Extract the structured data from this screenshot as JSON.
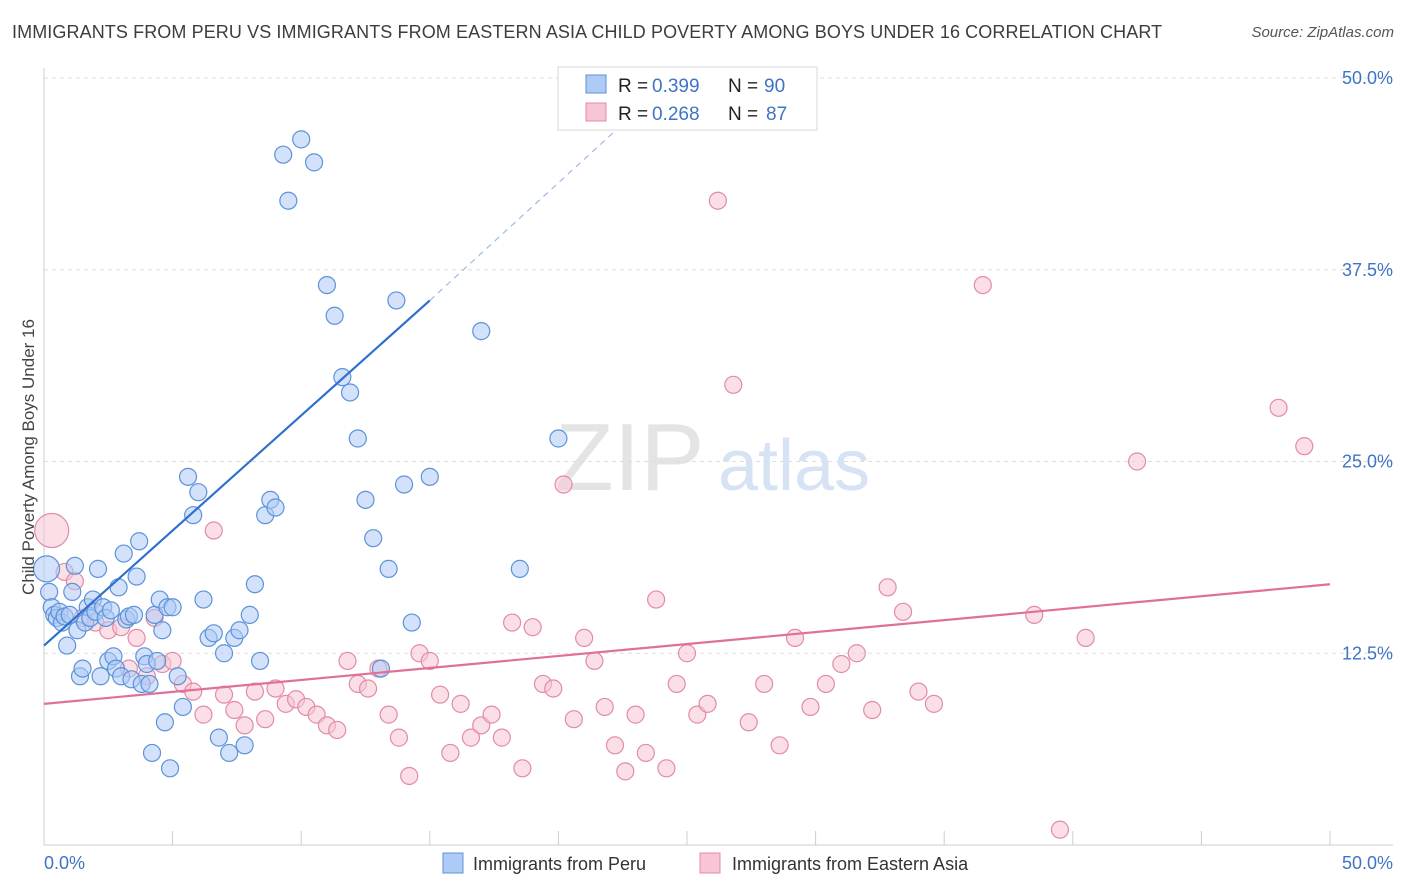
{
  "title": "IMMIGRANTS FROM PERU VS IMMIGRANTS FROM EASTERN ASIA CHILD POVERTY AMONG BOYS UNDER 16 CORRELATION CHART",
  "source": "Source: ZipAtlas.com",
  "watermark": {
    "zip": "ZIP",
    "atlas": "atlas"
  },
  "colors": {
    "peru_fill": "#aecbf5",
    "peru_stroke": "#5b93d9",
    "peru_line": "#2f6fcf",
    "asia_fill": "#f7c5d4",
    "asia_stroke": "#e28ba8",
    "asia_line": "#e0709a",
    "axis_label": "#3f74c4",
    "grid": "#dddddd"
  },
  "legend": {
    "rows": [
      {
        "r_label": "R = ",
        "r_value": "0.399",
        "n_label": "N = ",
        "n_value": "90"
      },
      {
        "r_label": "R = ",
        "r_value": "0.268",
        "n_label": "N = ",
        "n_value": "87"
      }
    ]
  },
  "chart_data": {
    "type": "scatter",
    "title": "IMMIGRANTS FROM PERU VS IMMIGRANTS FROM EASTERN ASIA CHILD POVERTY AMONG BOYS UNDER 16 CORRELATION CHART",
    "xlabel": "",
    "ylabel": "Child Poverty Among Boys Under 16",
    "xlim": [
      0,
      50
    ],
    "ylim": [
      0,
      50
    ],
    "x_tick_labels": [
      "0.0%",
      "50.0%"
    ],
    "y_ticks": [
      12.5,
      25.0,
      37.5,
      50.0
    ],
    "y_tick_labels": [
      "12.5%",
      "25.0%",
      "37.5%",
      "50.0%"
    ],
    "grid": true,
    "legend_position": "top-center",
    "series": [
      {
        "name": "Immigrants from Peru",
        "r": 0.399,
        "n": 90,
        "trend": {
          "x0": 0.0,
          "y0": 13.0,
          "x1": 15.0,
          "y1": 35.5,
          "dash_x1": 22.5,
          "dash_y1": 47.0
        },
        "points": [
          [
            0.1,
            18.0
          ],
          [
            0.2,
            16.5
          ],
          [
            0.3,
            15.5
          ],
          [
            0.4,
            15.0
          ],
          [
            0.5,
            14.8
          ],
          [
            0.6,
            15.2
          ],
          [
            0.7,
            14.5
          ],
          [
            0.8,
            14.9
          ],
          [
            0.9,
            13.0
          ],
          [
            1.0,
            15.0
          ],
          [
            1.1,
            16.5
          ],
          [
            1.2,
            18.2
          ],
          [
            1.3,
            14.0
          ],
          [
            1.4,
            11.0
          ],
          [
            1.5,
            11.5
          ],
          [
            1.6,
            14.5
          ],
          [
            1.7,
            15.5
          ],
          [
            1.8,
            14.8
          ],
          [
            1.9,
            16.0
          ],
          [
            2.0,
            15.2
          ],
          [
            2.1,
            18.0
          ],
          [
            2.2,
            11.0
          ],
          [
            2.3,
            15.5
          ],
          [
            2.4,
            14.8
          ],
          [
            2.5,
            12.0
          ],
          [
            2.6,
            15.3
          ],
          [
            2.7,
            12.3
          ],
          [
            2.8,
            11.5
          ],
          [
            2.9,
            16.8
          ],
          [
            3.0,
            11.0
          ],
          [
            3.1,
            19.0
          ],
          [
            3.2,
            14.7
          ],
          [
            3.3,
            14.9
          ],
          [
            3.4,
            10.8
          ],
          [
            3.5,
            15.0
          ],
          [
            3.6,
            17.5
          ],
          [
            3.7,
            19.8
          ],
          [
            3.8,
            10.5
          ],
          [
            3.9,
            12.3
          ],
          [
            4.0,
            11.8
          ],
          [
            4.1,
            10.5
          ],
          [
            4.2,
            6.0
          ],
          [
            4.3,
            15.0
          ],
          [
            4.4,
            12.0
          ],
          [
            4.5,
            16.0
          ],
          [
            4.6,
            14.0
          ],
          [
            4.7,
            8.0
          ],
          [
            4.8,
            15.5
          ],
          [
            4.9,
            5.0
          ],
          [
            5.0,
            15.5
          ],
          [
            5.2,
            11.0
          ],
          [
            5.4,
            9.0
          ],
          [
            5.6,
            24.0
          ],
          [
            5.8,
            21.5
          ],
          [
            6.0,
            23.0
          ],
          [
            6.2,
            16.0
          ],
          [
            6.4,
            13.5
          ],
          [
            6.6,
            13.8
          ],
          [
            6.8,
            7.0
          ],
          [
            7.0,
            12.5
          ],
          [
            7.2,
            6.0
          ],
          [
            7.4,
            13.5
          ],
          [
            7.6,
            14.0
          ],
          [
            7.8,
            6.5
          ],
          [
            8.0,
            15.0
          ],
          [
            8.2,
            17.0
          ],
          [
            8.4,
            12.0
          ],
          [
            8.6,
            21.5
          ],
          [
            8.8,
            22.5
          ],
          [
            9.0,
            22.0
          ],
          [
            9.3,
            45.0
          ],
          [
            9.5,
            42.0
          ],
          [
            10.0,
            46.0
          ],
          [
            10.5,
            44.5
          ],
          [
            11.0,
            36.5
          ],
          [
            11.3,
            34.5
          ],
          [
            11.6,
            30.5
          ],
          [
            11.9,
            29.5
          ],
          [
            12.2,
            26.5
          ],
          [
            12.5,
            22.5
          ],
          [
            12.8,
            20.0
          ],
          [
            13.1,
            11.5
          ],
          [
            13.4,
            18.0
          ],
          [
            13.7,
            35.5
          ],
          [
            14.0,
            23.5
          ],
          [
            14.3,
            14.5
          ],
          [
            15.0,
            24.0
          ],
          [
            17.0,
            33.5
          ],
          [
            18.5,
            18.0
          ],
          [
            20.0,
            26.5
          ]
        ]
      },
      {
        "name": "Immigrants from Eastern Asia",
        "r": 0.268,
        "n": 87,
        "trend": {
          "x0": 0.0,
          "y0": 9.2,
          "x1": 50.0,
          "y1": 17.0
        },
        "points": [
          [
            0.3,
            20.5
          ],
          [
            0.8,
            17.8
          ],
          [
            1.2,
            17.2
          ],
          [
            1.5,
            14.8
          ],
          [
            2.0,
            14.5
          ],
          [
            2.5,
            14.0
          ],
          [
            3.0,
            14.2
          ],
          [
            3.3,
            11.5
          ],
          [
            3.6,
            13.5
          ],
          [
            4.0,
            11.0
          ],
          [
            4.3,
            14.8
          ],
          [
            4.6,
            11.8
          ],
          [
            5.0,
            12.0
          ],
          [
            5.4,
            10.5
          ],
          [
            5.8,
            10.0
          ],
          [
            6.2,
            8.5
          ],
          [
            6.6,
            20.5
          ],
          [
            7.0,
            9.8
          ],
          [
            7.4,
            8.8
          ],
          [
            7.8,
            7.8
          ],
          [
            8.2,
            10.0
          ],
          [
            8.6,
            8.2
          ],
          [
            9.0,
            10.2
          ],
          [
            9.4,
            9.2
          ],
          [
            9.8,
            9.5
          ],
          [
            10.2,
            9.0
          ],
          [
            10.6,
            8.5
          ],
          [
            11.0,
            7.8
          ],
          [
            11.4,
            7.5
          ],
          [
            11.8,
            12.0
          ],
          [
            12.2,
            10.5
          ],
          [
            12.6,
            10.2
          ],
          [
            13.0,
            11.5
          ],
          [
            13.4,
            8.5
          ],
          [
            13.8,
            7.0
          ],
          [
            14.2,
            4.5
          ],
          [
            14.6,
            12.5
          ],
          [
            15.0,
            12.0
          ],
          [
            15.4,
            9.8
          ],
          [
            15.8,
            6.0
          ],
          [
            16.2,
            9.2
          ],
          [
            16.6,
            7.0
          ],
          [
            17.0,
            7.8
          ],
          [
            17.4,
            8.5
          ],
          [
            17.8,
            7.0
          ],
          [
            18.2,
            14.5
          ],
          [
            18.6,
            5.0
          ],
          [
            19.0,
            14.2
          ],
          [
            19.4,
            10.5
          ],
          [
            19.8,
            10.2
          ],
          [
            20.2,
            23.5
          ],
          [
            20.6,
            8.2
          ],
          [
            21.0,
            13.5
          ],
          [
            21.4,
            12.0
          ],
          [
            21.8,
            9.0
          ],
          [
            22.2,
            6.5
          ],
          [
            22.6,
            4.8
          ],
          [
            23.0,
            8.5
          ],
          [
            23.4,
            6.0
          ],
          [
            23.8,
            16.0
          ],
          [
            24.2,
            5.0
          ],
          [
            24.6,
            10.5
          ],
          [
            25.0,
            12.5
          ],
          [
            25.4,
            8.5
          ],
          [
            25.8,
            9.2
          ],
          [
            26.2,
            42.0
          ],
          [
            26.8,
            30.0
          ],
          [
            27.4,
            8.0
          ],
          [
            28.0,
            10.5
          ],
          [
            28.6,
            6.5
          ],
          [
            29.2,
            13.5
          ],
          [
            29.8,
            9.0
          ],
          [
            30.4,
            10.5
          ],
          [
            31.0,
            11.8
          ],
          [
            31.6,
            12.5
          ],
          [
            32.2,
            8.8
          ],
          [
            32.8,
            16.8
          ],
          [
            33.4,
            15.2
          ],
          [
            34.0,
            10.0
          ],
          [
            34.6,
            9.2
          ],
          [
            36.5,
            36.5
          ],
          [
            38.5,
            15.0
          ],
          [
            39.5,
            1.0
          ],
          [
            40.5,
            13.5
          ],
          [
            42.5,
            25.0
          ],
          [
            48.0,
            28.5
          ],
          [
            49.0,
            26.0
          ]
        ]
      }
    ]
  }
}
